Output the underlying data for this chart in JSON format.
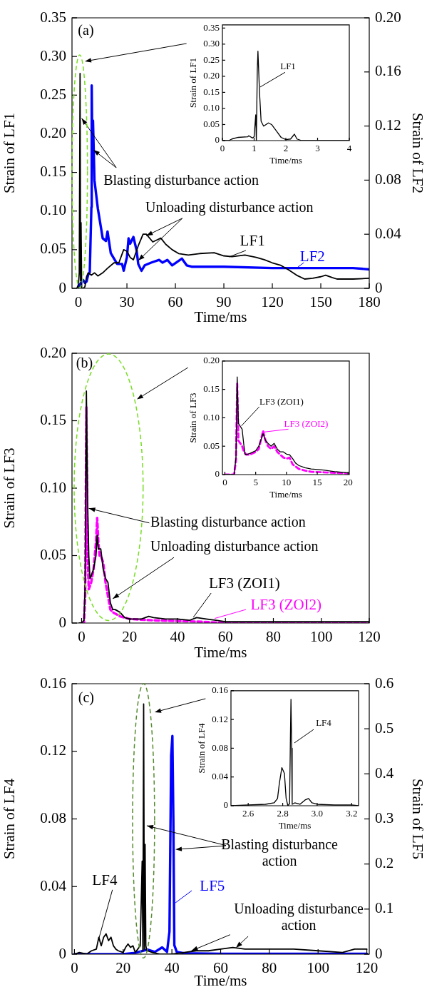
{
  "chart_data": [
    {
      "type": "line",
      "xlabel": "Time/ms",
      "ylabel": "Strain of LF1",
      "y2label": "Strain of LF2",
      "xlim": [
        -4,
        180
      ],
      "xticks": [
        0,
        30,
        60,
        90,
        120,
        150,
        180
      ],
      "ylim": [
        0,
        0.35
      ],
      "yticks": [
        0,
        0.05,
        {
          "value": 0.1,
          "label": "0.10"
        },
        0.15,
        {
          "value": 0.2,
          "label": "0.20"
        },
        0.25,
        {
          "value": 0.3,
          "label": "0.30"
        },
        0.35
      ],
      "y2lim": [
        0,
        0.2
      ],
      "y2ticks": [
        0,
        0.04,
        0.08,
        0.12,
        0.16,
        {
          "value": 0.2,
          "label": "0.20"
        }
      ],
      "annotations": [
        "(a)",
        {
          "text": "Blasting disturbance action",
          "x": 2,
          "y": 0.22
        },
        {
          "text": "Unloading disturbance action",
          "x": 42,
          "y": 0.068
        }
      ],
      "series": [
        {
          "name": "LF1",
          "color": "#000000",
          "x": [
            -1,
            0,
            0.5,
            1,
            1.3,
            1.6,
            2,
            3,
            4,
            5,
            6,
            8,
            10,
            12,
            15,
            18,
            22,
            25,
            28,
            30,
            32,
            34,
            37,
            40,
            42,
            46,
            49,
            51,
            54,
            58,
            62,
            68,
            75,
            84,
            90,
            95,
            103,
            110,
            115,
            120,
            125,
            130,
            135,
            140,
            145,
            150,
            153,
            157,
            160,
            170,
            180
          ],
          "values": [
            0,
            0.005,
            0.02,
            0.278,
            0.01,
            0.085,
            0,
            0,
            0.002,
            0.015,
            0.02,
            0.017,
            0.02,
            0.016,
            0.02,
            0.026,
            0.033,
            0.033,
            0.05,
            0.048,
            0.04,
            0.037,
            0.055,
            0.07,
            0.07,
            0.06,
            0.063,
            0.065,
            0.057,
            0.05,
            0.045,
            0.043,
            0.045,
            0.046,
            0.042,
            0.041,
            0.043,
            0.04,
            0.037,
            0.033,
            0.03,
            0.024,
            0.017,
            0.012,
            0.013,
            0.015,
            0.017,
            0.014,
            0.012,
            0.012,
            0.013
          ]
        },
        {
          "name": "LF2",
          "color": "#0000ff",
          "axis": "y2",
          "x": [
            0,
            1,
            2,
            3,
            4,
            5,
            6,
            7,
            8,
            8.2,
            8.6,
            9,
            9.9,
            12,
            15,
            17,
            18,
            20,
            22,
            24,
            27,
            28,
            30,
            31,
            32,
            34,
            36,
            37,
            39,
            41,
            45,
            50,
            52,
            55,
            58,
            64,
            67,
            70,
            90,
            120,
            140,
            170,
            180
          ],
          "values": [
            0,
            0.003,
            0.005,
            0.006,
            0.004,
            0.005,
            0.01,
            0.012,
            0.06,
            0.15,
            0.1,
            0.124,
            0.08,
            0.059,
            0.037,
            0.035,
            0.042,
            0.026,
            0.022,
            0.018,
            0.018,
            0.013,
            0.023,
            0.037,
            0.033,
            0.038,
            0.028,
            0.018,
            0.013,
            0.017,
            0.019,
            0.021,
            0.019,
            0.021,
            0.017,
            0.022,
            0.017,
            0.016,
            0.016,
            0.015,
            0.015,
            0.015,
            0.014
          ]
        }
      ]
    },
    {
      "type": "line",
      "xlabel": "Time/ms",
      "ylabel": "Strain of LF1",
      "xlim": [
        0,
        4
      ],
      "xticks": [
        0,
        1,
        2,
        3,
        4
      ],
      "ylim": [
        0,
        0.36
      ],
      "yticks": [
        0,
        0.05,
        {
          "value": 0.1,
          "label": "0.10"
        },
        0.15,
        {
          "value": 0.2,
          "label": "0.20"
        },
        0.25,
        {
          "value": 0.3,
          "label": "0.30"
        },
        0.35
      ],
      "series": [
        {
          "name": "LF1",
          "color": "#000000",
          "x": [
            0,
            0.2,
            0.3,
            0.5,
            0.8,
            0.83,
            0.95,
            1,
            1.05,
            1.07,
            1.1,
            1.12,
            1.17,
            1.22,
            1.3,
            1.45,
            1.55,
            1.7,
            1.85,
            2,
            2.15,
            2.27,
            2.35,
            2.5,
            4
          ],
          "values": [
            0,
            0,
            0.005,
            0.01,
            0.012,
            0.015,
            0.008,
            0.012,
            0.08,
            0,
            0.22,
            0.278,
            0.15,
            0.06,
            0.045,
            0.055,
            0.05,
            0.03,
            0.01,
            0.003,
            0.005,
            0.02,
            0.005,
            0,
            0
          ]
        }
      ]
    },
    {
      "type": "line",
      "xlabel": "Time/ms",
      "ylabel": "Strain of LF3",
      "xlim": [
        -4,
        120
      ],
      "xticks": [
        0,
        20,
        40,
        60,
        80,
        100,
        120
      ],
      "ylim": [
        0,
        0.2
      ],
      "yticks": [
        0,
        0.05,
        {
          "value": 0.1,
          "label": "0.10"
        },
        0.15,
        {
          "value": 0.2,
          "label": "0.20"
        }
      ],
      "annotations": [
        "(b)",
        {
          "text": "Blasting disturbance action",
          "x": 3,
          "y": 0.085
        },
        {
          "text": "Unloading disturbance action",
          "x": 13,
          "y": 0.018
        }
      ],
      "series": [
        {
          "name": "LF3 (ZOI1)",
          "color": "#000000",
          "x": [
            -1,
            0,
            1,
            1.5,
            2,
            2.5,
            3,
            3.5,
            4,
            5,
            6,
            6.5,
            7,
            8,
            9,
            10,
            11,
            12,
            13,
            14,
            16,
            18,
            20,
            25,
            28,
            30,
            35,
            40,
            45,
            48,
            52,
            56,
            60,
            80,
            100,
            120
          ],
          "values": [
            0,
            0,
            0.002,
            0.03,
            0.172,
            0.09,
            0.05,
            0.033,
            0.035,
            0.04,
            0.05,
            0.065,
            0.055,
            0.055,
            0.04,
            0.033,
            0.03,
            0.015,
            0.01,
            0.01,
            0.008,
            0.004,
            0.003,
            0.003,
            0.005,
            0.004,
            0.003,
            0.003,
            0.002,
            0.004,
            0.003,
            0.002,
            0.001,
            0.001,
            0.001,
            0.001
          ]
        },
        {
          "name": "LF3 (ZOI2)",
          "color": "#ff00ff",
          "line_style": "dashed",
          "x": [
            0,
            1,
            1.5,
            2,
            2.5,
            3,
            4,
            5,
            6,
            6.5,
            7,
            7.5,
            8,
            9,
            10,
            11,
            12,
            13,
            16,
            20,
            30,
            50,
            60,
            120
          ],
          "values": [
            0,
            0,
            0.02,
            0.16,
            0.05,
            0.025,
            0.03,
            0.04,
            0.06,
            0.078,
            0.06,
            0.05,
            0.05,
            0.045,
            0.03,
            0.02,
            0.01,
            0.008,
            0.005,
            0.003,
            0.002,
            0.001,
            0,
            0
          ]
        }
      ]
    },
    {
      "type": "line",
      "xlabel": "Time/ms",
      "ylabel": "Strain of LF3",
      "xlim": [
        -0.4,
        20.2
      ],
      "xticks": [
        0,
        5,
        10,
        15,
        20
      ],
      "ylim": [
        0,
        0.2
      ],
      "yticks": [
        0,
        0.05,
        {
          "value": 0.1,
          "label": "0.10"
        },
        0.15,
        {
          "value": 0.2,
          "label": "0.20"
        }
      ],
      "series": [
        {
          "name": "LF3 (ZOI1)",
          "color": "#000000",
          "x": [
            0,
            1.5,
            1.8,
            2,
            2.2,
            2.5,
            2.8,
            3.1,
            3.3,
            4,
            5,
            5.5,
            6.2,
            6.6,
            7,
            7.5,
            8,
            8.5,
            9,
            9.5,
            10,
            10.5,
            11,
            11.5,
            12,
            13,
            14,
            15,
            16,
            18,
            20
          ],
          "values": [
            0,
            0,
            0.03,
            0.172,
            0.09,
            0.085,
            0.08,
            0.05,
            0.035,
            0.037,
            0.042,
            0.05,
            0.072,
            0.06,
            0.055,
            0.05,
            0.055,
            0.045,
            0.04,
            0.04,
            0.036,
            0.035,
            0.028,
            0.02,
            0.016,
            0.012,
            0.01,
            0.009,
            0.008,
            0.005,
            0.003
          ]
        },
        {
          "name": "LF3 (ZOI2)",
          "color": "#ff00ff",
          "line_style": "dashed",
          "x": [
            0,
            1.5,
            1.8,
            2,
            2.2,
            2.5,
            2.8,
            3.1,
            3.5,
            4,
            5,
            5.5,
            6.2,
            6.6,
            7,
            7.5,
            8,
            8.5,
            9,
            9.5,
            10,
            10.5,
            11,
            12,
            13,
            14,
            16,
            18,
            20
          ],
          "values": [
            0,
            0,
            0.025,
            0.16,
            0.06,
            0.055,
            0.05,
            0.04,
            0.035,
            0.035,
            0.04,
            0.045,
            0.077,
            0.06,
            0.05,
            0.045,
            0.05,
            0.04,
            0.035,
            0.03,
            0.028,
            0.03,
            0.018,
            0.01,
            0.007,
            0.005,
            0.004,
            0.003,
            0.002
          ]
        }
      ]
    },
    {
      "type": "line",
      "xlabel": "Time/ms",
      "ylabel": "Strain of LF4",
      "y2label": "Strain of LF5",
      "xlim": [
        -1,
        121
      ],
      "xticks": [
        0,
        20,
        40,
        60,
        80,
        100,
        120
      ],
      "ylim": [
        0,
        0.16
      ],
      "yticks": [
        0,
        0.04,
        0.08,
        0.12,
        0.16
      ],
      "y2lim": [
        0,
        0.6
      ],
      "y2ticks": [
        0,
        0.1,
        0.2,
        0.3,
        0.4,
        0.5,
        0.6
      ],
      "annotations": [
        "(c)",
        {
          "text": "Blasting disturbance action",
          "x": 29.7,
          "y": 0.076
        },
        {
          "text": "Unloading disturbance action",
          "x": 48,
          "y": 0.002
        }
      ],
      "series": [
        {
          "name": "LF4",
          "color": "#000000",
          "x": [
            0,
            2,
            5,
            7,
            9,
            10,
            11,
            12,
            13,
            14,
            15,
            16,
            17,
            18,
            20,
            21,
            22,
            23,
            24,
            25,
            26,
            27,
            27.8,
            28.1,
            28.4,
            28.7,
            29,
            29.3,
            29.7,
            30,
            32,
            35,
            40,
            45,
            50,
            55,
            60,
            65,
            70,
            80,
            90,
            100,
            110,
            115,
            120
          ],
          "values": [
            0,
            0.001,
            0,
            0.002,
            0.003,
            0.01,
            0.005,
            0.01,
            0.012,
            0.008,
            0.01,
            0.005,
            0.003,
            0.002,
            0.001,
            0.004,
            0.006,
            0.004,
            0.005,
            0.001,
            0.003,
            0.005,
            0.055,
            0.002,
            0.148,
            0.003,
            0.065,
            0.005,
            0.002,
            0.002,
            0.001,
            0,
            0,
            0.001,
            0.002,
            0.002,
            0.003,
            0.004,
            0.003,
            0.003,
            0.003,
            0.002,
            0.001,
            0.003,
            0.003
          ]
        },
        {
          "name": "LF5",
          "color": "#0000ff",
          "axis": "y2",
          "x": [
            0,
            20,
            25,
            30,
            33,
            36,
            38,
            39,
            39.7,
            40.2,
            40.6,
            41,
            42,
            45,
            60,
            120
          ],
          "values": [
            0,
            0,
            0.003,
            0.01,
            0.005,
            0.015,
            0.005,
            0.05,
            0.44,
            0.484,
            0.3,
            0.02,
            0.005,
            0.002,
            0.001,
            0.001
          ]
        }
      ]
    },
    {
      "type": "line",
      "xlabel": "Time/ms",
      "ylabel": "Strain of LF4",
      "xlim": [
        2.5,
        3.24
      ],
      "xticks": [
        2.6,
        2.8,
        {
          "value": 3,
          "label": "3.0"
        },
        3.2
      ],
      "ylim": [
        0,
        0.16
      ],
      "yticks": [
        0,
        0.04,
        0.08,
        0.12,
        0.16
      ],
      "series": [
        {
          "name": "LF4",
          "color": "#000000",
          "x": [
            2.5,
            2.6,
            2.7,
            2.75,
            2.77,
            2.78,
            2.795,
            2.81,
            2.82,
            2.83,
            2.84,
            2.845,
            2.848,
            2.852,
            2.855,
            2.87,
            2.9,
            2.93,
            2.95,
            2.97,
            3,
            3.1,
            3.2,
            3.24
          ],
          "values": [
            0,
            0.001,
            0.002,
            0.004,
            0.01,
            0.03,
            0.053,
            0.045,
            0.01,
            0,
            0.003,
            0.1,
            0.148,
            0.08,
            0.002,
            0.004,
            0.002,
            0.008,
            0.01,
            0.004,
            0.002,
            0.001,
            0.001,
            0
          ]
        }
      ]
    }
  ]
}
